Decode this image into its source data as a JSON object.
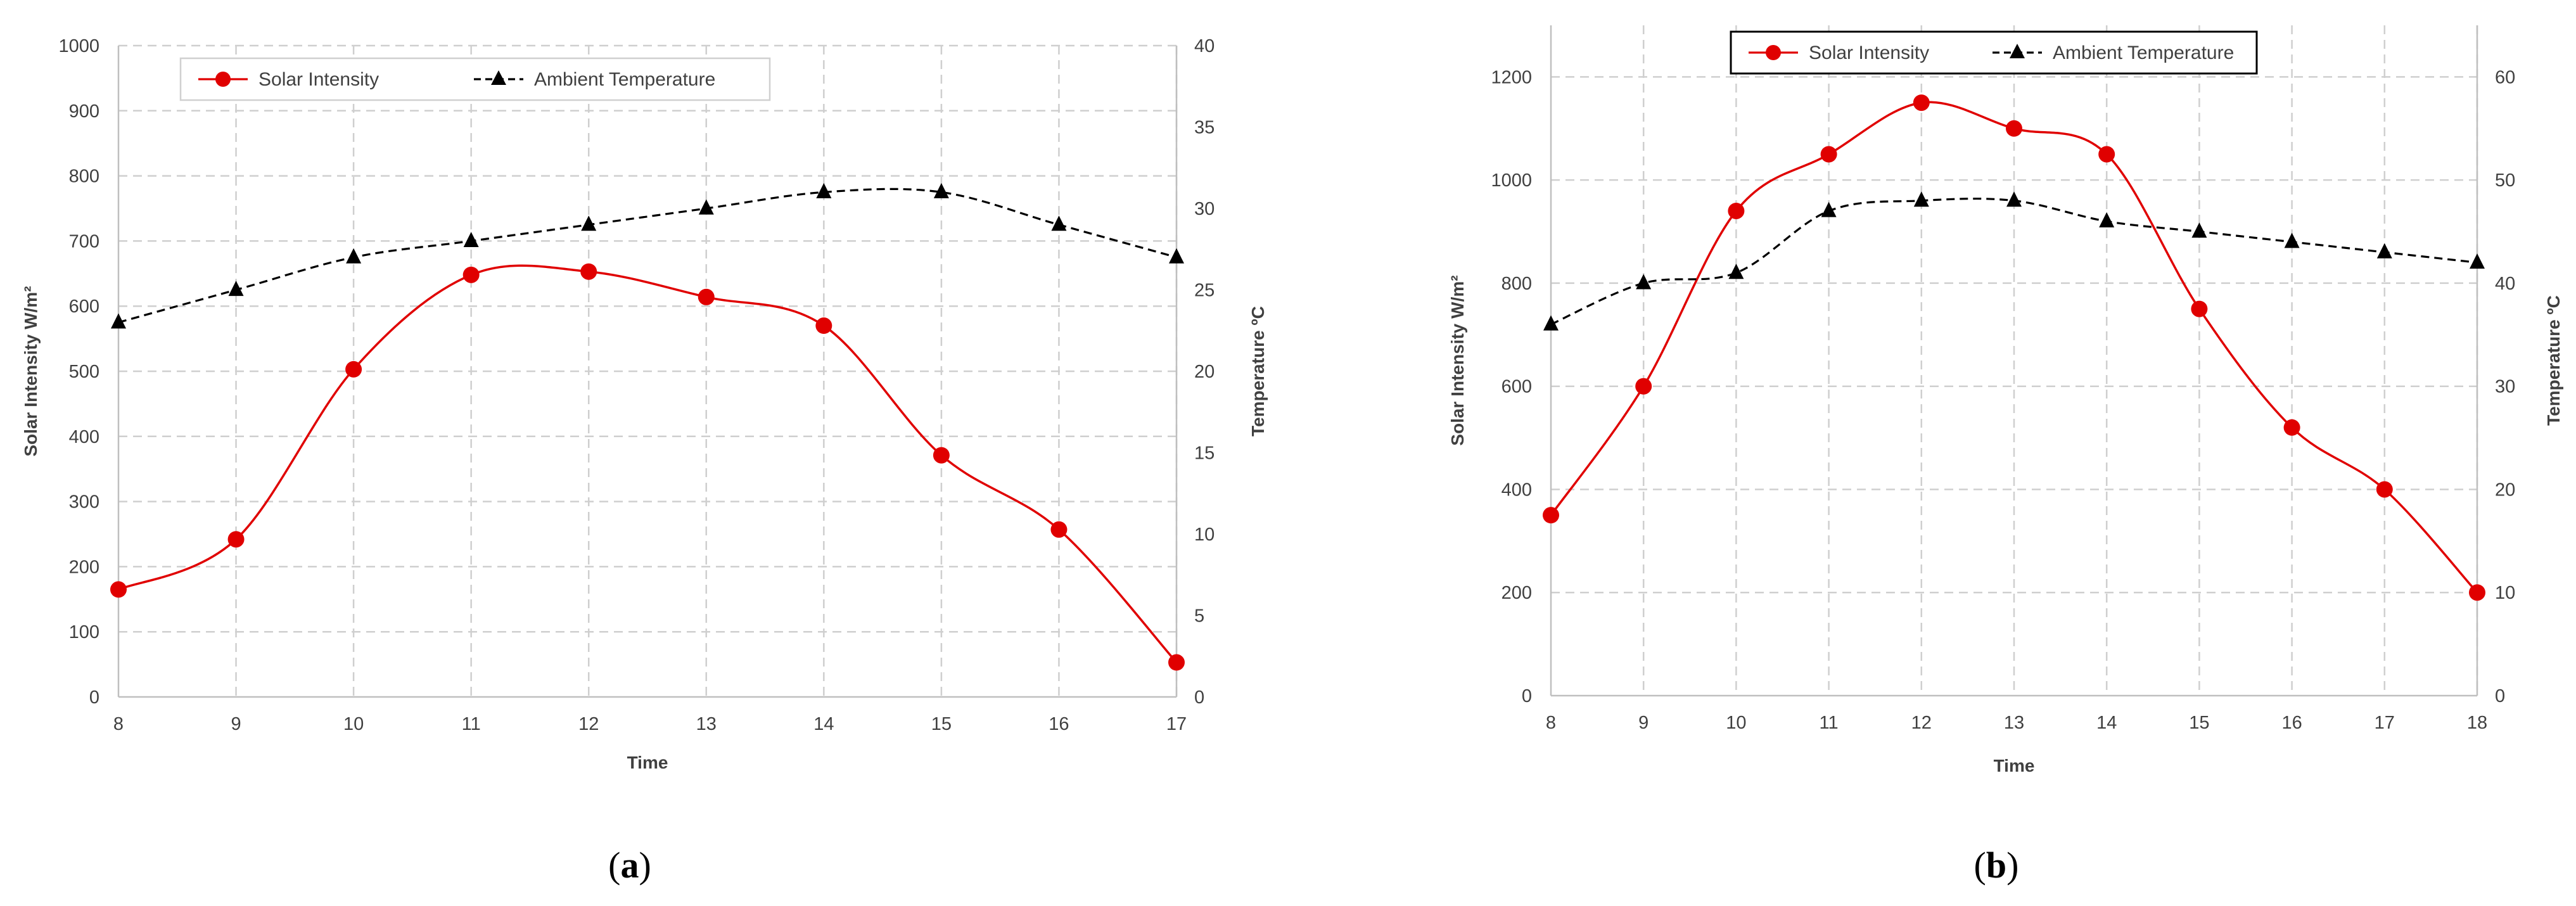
{
  "chart_data": [
    {
      "type": "line",
      "panel_label": "a",
      "title": "",
      "xlabel": "Time",
      "ylabel": "Solar Intensity W/m²",
      "y2label": "Temperature ºC",
      "x": [
        8,
        9,
        10,
        11,
        12,
        13,
        14,
        15,
        16,
        17
      ],
      "xlim": [
        8,
        17
      ],
      "ylim": [
        0,
        1000
      ],
      "y2lim": [
        0,
        40
      ],
      "ytick_step": 100,
      "y2tick_step": 5,
      "grid": true,
      "legend": "top-left",
      "series": [
        {
          "name": "Solar Intensity",
          "axis": "left",
          "color": "#e00000",
          "line_style": "solid",
          "marker": "circle",
          "values": [
            165,
            242,
            503,
            648,
            653,
            614,
            570,
            371,
            257,
            53
          ]
        },
        {
          "name": "Ambient Temperature",
          "axis": "right",
          "color": "#000000",
          "line_style": "dashed",
          "marker": "triangle",
          "values": [
            23,
            25,
            27,
            28,
            29,
            30,
            31,
            31,
            29,
            27
          ]
        }
      ]
    },
    {
      "type": "line",
      "panel_label": "b",
      "title": "",
      "xlabel": "Time",
      "ylabel": "Solar Intensity W/m²",
      "y2label": "Temperature ºC",
      "x": [
        8,
        9,
        10,
        11,
        12,
        13,
        14,
        15,
        16,
        17,
        18
      ],
      "xlim": [
        8,
        18
      ],
      "ylim": [
        0,
        1300
      ],
      "y2lim": [
        0,
        65
      ],
      "ytick_step": 200,
      "y2tick_step": 10,
      "grid": true,
      "legend": "top-center",
      "series": [
        {
          "name": "Solar Intensity",
          "axis": "left",
          "color": "#e00000",
          "line_style": "solid",
          "marker": "circle",
          "values": [
            350,
            600,
            940,
            1050,
            1150,
            1100,
            1050,
            750,
            520,
            400,
            200
          ]
        },
        {
          "name": "Ambient Temperature",
          "axis": "right",
          "color": "#000000",
          "line_style": "dashed",
          "marker": "triangle",
          "values": [
            36,
            40,
            41,
            47,
            48,
            48,
            46,
            45,
            44,
            43,
            42
          ]
        }
      ]
    }
  ]
}
